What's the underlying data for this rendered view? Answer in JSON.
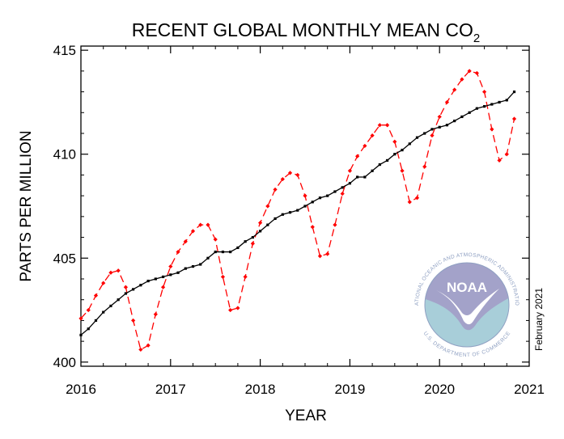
{
  "chart_data": {
    "type": "line",
    "title": "RECENT GLOBAL MONTHLY MEAN CO",
    "title_subscript": "2",
    "xlabel": "YEAR",
    "ylabel": "PARTS PER MILLION",
    "xlim": [
      2016.0,
      2021.0
    ],
    "ylim": [
      399.8,
      415.2
    ],
    "x_ticks": [
      "2016",
      "2017",
      "2018",
      "2019",
      "2020",
      "2021"
    ],
    "y_ticks": [
      "400",
      "405",
      "410",
      "415"
    ],
    "grid": false,
    "legend": "none",
    "series": [
      {
        "color": "#ff0000",
        "line_style": "dashed",
        "marker": "diamond",
        "x": [
          "2016-01",
          "2016-02",
          "2016-03",
          "2016-04",
          "2016-05",
          "2016-06",
          "2016-07",
          "2016-08",
          "2016-09",
          "2016-10",
          "2016-11",
          "2016-12",
          "2017-01",
          "2017-02",
          "2017-03",
          "2017-04",
          "2017-05",
          "2017-06",
          "2017-07",
          "2017-08",
          "2017-09",
          "2017-10",
          "2017-11",
          "2017-12",
          "2018-01",
          "2018-02",
          "2018-03",
          "2018-04",
          "2018-05",
          "2018-06",
          "2018-07",
          "2018-08",
          "2018-09",
          "2018-10",
          "2018-11",
          "2018-12",
          "2019-01",
          "2019-02",
          "2019-03",
          "2019-04",
          "2019-05",
          "2019-06",
          "2019-07",
          "2019-08",
          "2019-09",
          "2019-10",
          "2019-11",
          "2019-12",
          "2020-01",
          "2020-02",
          "2020-03",
          "2020-04",
          "2020-05",
          "2020-06",
          "2020-07",
          "2020-08",
          "2020-09",
          "2020-10",
          "2020-11"
        ],
        "values": [
          402.1,
          402.5,
          403.2,
          403.8,
          404.3,
          404.4,
          403.6,
          402.0,
          400.6,
          400.8,
          402.3,
          403.6,
          404.6,
          405.3,
          405.8,
          406.3,
          406.6,
          406.6,
          405.9,
          404.1,
          402.5,
          402.6,
          404.1,
          405.7,
          406.7,
          407.5,
          408.3,
          408.8,
          409.1,
          409.0,
          408.0,
          406.5,
          405.1,
          405.2,
          406.6,
          408.1,
          409.2,
          409.9,
          410.4,
          410.9,
          411.4,
          411.4,
          410.6,
          409.2,
          407.7,
          407.9,
          409.4,
          410.9,
          411.8,
          412.5,
          413.1,
          413.6,
          414.0,
          413.9,
          413.0,
          411.2,
          409.7,
          410.0,
          411.7
        ]
      },
      {
        "color": "#000000",
        "line_style": "solid",
        "marker": "square",
        "x": [
          "2016-01",
          "2016-02",
          "2016-03",
          "2016-04",
          "2016-05",
          "2016-06",
          "2016-07",
          "2016-08",
          "2016-09",
          "2016-10",
          "2016-11",
          "2016-12",
          "2017-01",
          "2017-02",
          "2017-03",
          "2017-04",
          "2017-05",
          "2017-06",
          "2017-07",
          "2017-08",
          "2017-09",
          "2017-10",
          "2017-11",
          "2017-12",
          "2018-01",
          "2018-02",
          "2018-03",
          "2018-04",
          "2018-05",
          "2018-06",
          "2018-07",
          "2018-08",
          "2018-09",
          "2018-10",
          "2018-11",
          "2018-12",
          "2019-01",
          "2019-02",
          "2019-03",
          "2019-04",
          "2019-05",
          "2019-06",
          "2019-07",
          "2019-08",
          "2019-09",
          "2019-10",
          "2019-11",
          "2019-12",
          "2020-01",
          "2020-02",
          "2020-03",
          "2020-04",
          "2020-05",
          "2020-06",
          "2020-07",
          "2020-08",
          "2020-09",
          "2020-10",
          "2020-11"
        ],
        "values": [
          401.3,
          401.6,
          402.0,
          402.4,
          402.7,
          403.0,
          403.3,
          403.5,
          403.7,
          403.9,
          404.0,
          404.1,
          404.2,
          404.3,
          404.5,
          404.6,
          404.7,
          405.0,
          405.3,
          405.3,
          405.3,
          405.5,
          405.8,
          406.0,
          406.3,
          406.6,
          406.9,
          407.1,
          407.2,
          407.3,
          407.5,
          407.7,
          407.9,
          408.0,
          408.2,
          408.4,
          408.6,
          408.9,
          408.9,
          409.2,
          409.5,
          409.7,
          410.0,
          410.2,
          410.5,
          410.8,
          411.0,
          411.2,
          411.3,
          411.4,
          411.6,
          411.8,
          412.0,
          412.2,
          412.3,
          412.4,
          412.5,
          412.6,
          413.0
        ]
      }
    ]
  },
  "seal": {
    "logo_text": "NOAA",
    "ring_text": "NATIONAL OCEANIC AND ATMOSPHERIC ADMINISTRATION",
    "lower_text": "U.S. DEPARTMENT OF COMMERCE"
  },
  "credit": "February 2021",
  "colors": {
    "seal_top": "#a3a2c9",
    "seal_bottom": "#a8ced9",
    "seal_text": "#8fa0c2"
  }
}
